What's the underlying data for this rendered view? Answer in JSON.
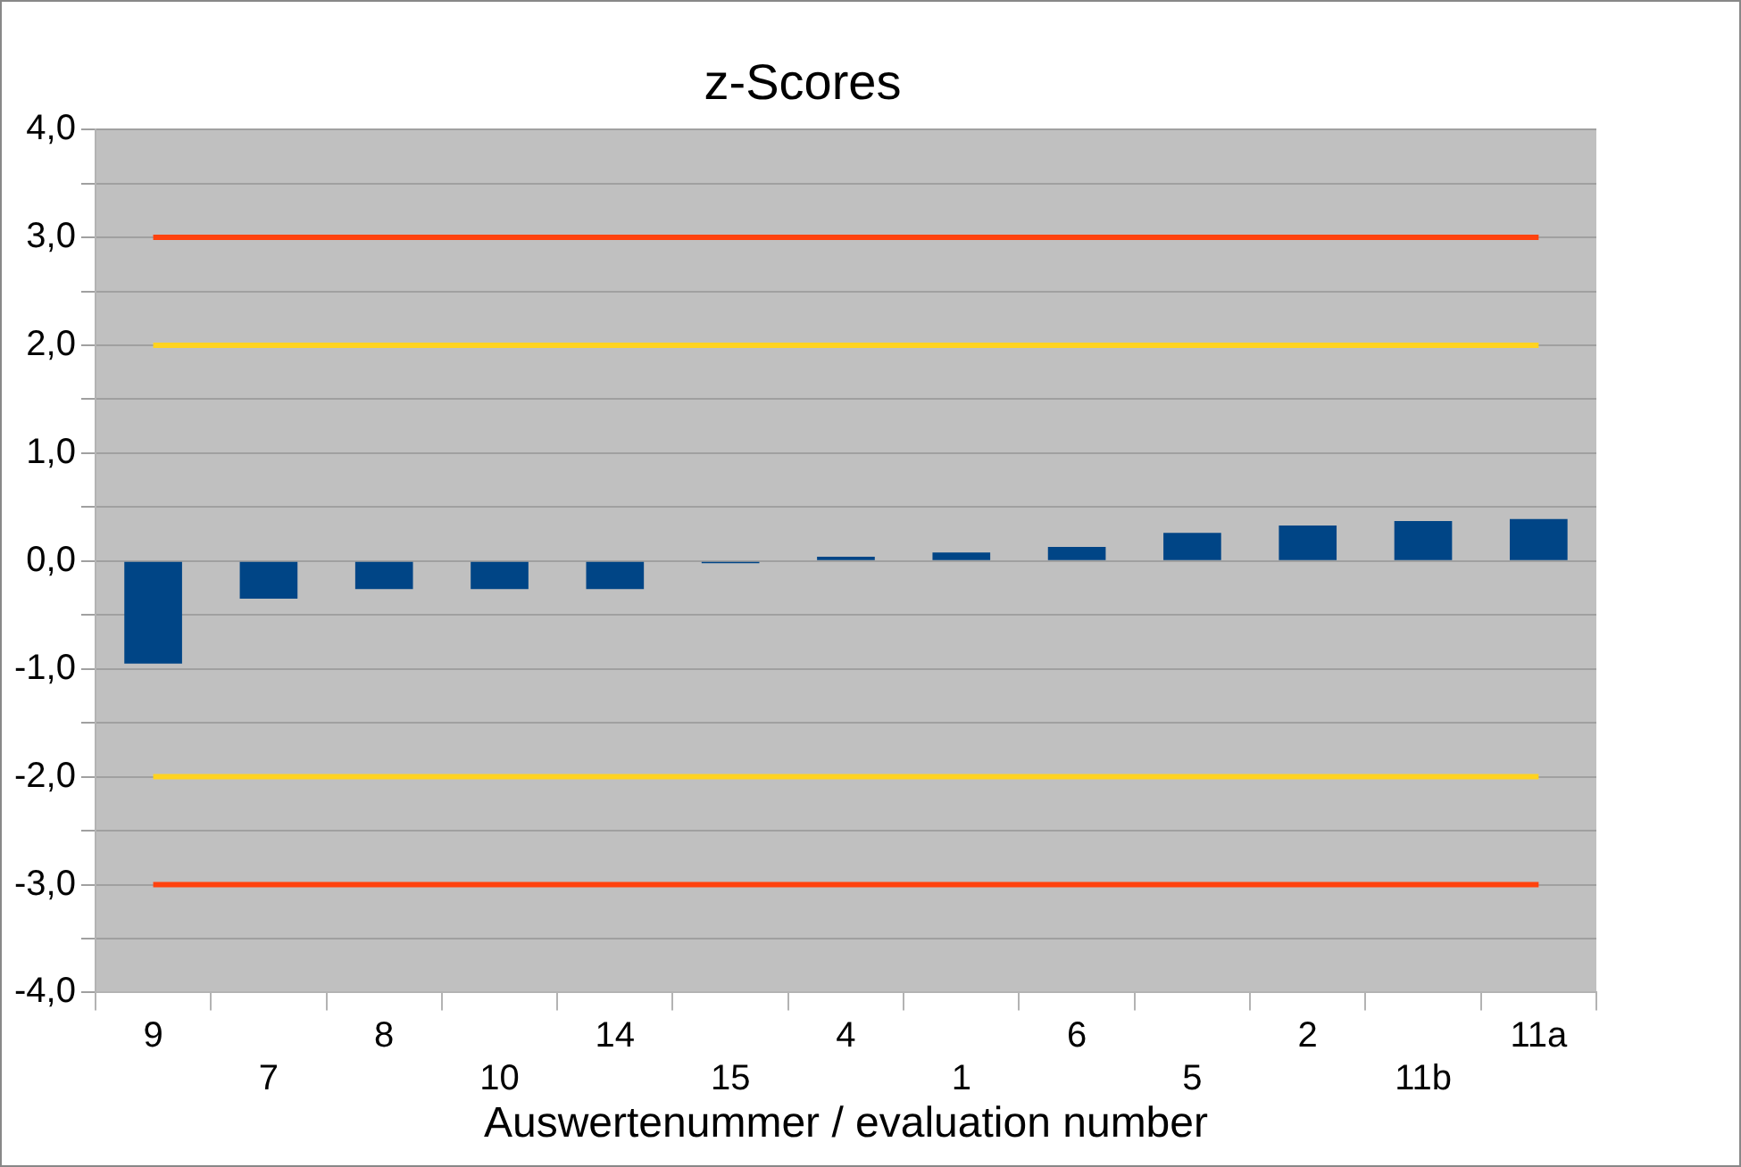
{
  "chart_data": {
    "type": "bar",
    "title": "z-Scores",
    "xlabel": "Auswertenummer / evaluation number",
    "categories": [
      "9",
      "7",
      "8",
      "10",
      "14",
      "15",
      "4",
      "1",
      "6",
      "5",
      "2",
      "11b",
      "11a"
    ],
    "series": [
      {
        "color": "#004586",
        "values": [
          -0.95,
          -0.35,
          -0.26,
          -0.26,
          -0.26,
          -0.02,
          0.04,
          0.08,
          0.13,
          0.26,
          0.33,
          0.37,
          0.39
        ]
      },
      {
        "type": "line",
        "color": "#ff420e",
        "values": [
          3,
          3,
          3,
          3,
          3,
          3,
          3,
          3,
          3,
          3,
          3,
          3,
          3
        ]
      },
      {
        "type": "line",
        "color": "#ffd320",
        "values": [
          2,
          2,
          2,
          2,
          2,
          2,
          2,
          2,
          2,
          2,
          2,
          2,
          2
        ]
      },
      {
        "type": "line",
        "color": "#ffd320",
        "values": [
          -2,
          -2,
          -2,
          -2,
          -2,
          -2,
          -2,
          -2,
          -2,
          -2,
          -2,
          -2,
          -2
        ]
      },
      {
        "type": "line",
        "color": "#ff420e",
        "values": [
          -3,
          -3,
          -3,
          -3,
          -3,
          -3,
          -3,
          -3,
          -3,
          -3,
          -3,
          -3,
          -3
        ]
      }
    ],
    "ylim": [
      -4,
      4
    ],
    "yticks": [
      {
        "value": -4,
        "label": "-4,0"
      },
      {
        "value": -3.5,
        "label": null
      },
      {
        "value": -3,
        "label": "-3,0"
      },
      {
        "value": -2.5,
        "label": null
      },
      {
        "value": -2,
        "label": "-2,0"
      },
      {
        "value": -1.5,
        "label": null
      },
      {
        "value": -1,
        "label": "-1,0"
      },
      {
        "value": -0.5,
        "label": null
      },
      {
        "value": 0,
        "label": "0,0"
      },
      {
        "value": 0.5,
        "label": null
      },
      {
        "value": 1,
        "label": "1,0"
      },
      {
        "value": 1.5,
        "label": null
      },
      {
        "value": 2,
        "label": "2,0"
      },
      {
        "value": 2.5,
        "label": null
      },
      {
        "value": 3,
        "label": "3,0"
      },
      {
        "value": 3.5,
        "label": null
      },
      {
        "value": 4,
        "label": "4,0"
      }
    ],
    "grid": "y",
    "legend": false
  }
}
